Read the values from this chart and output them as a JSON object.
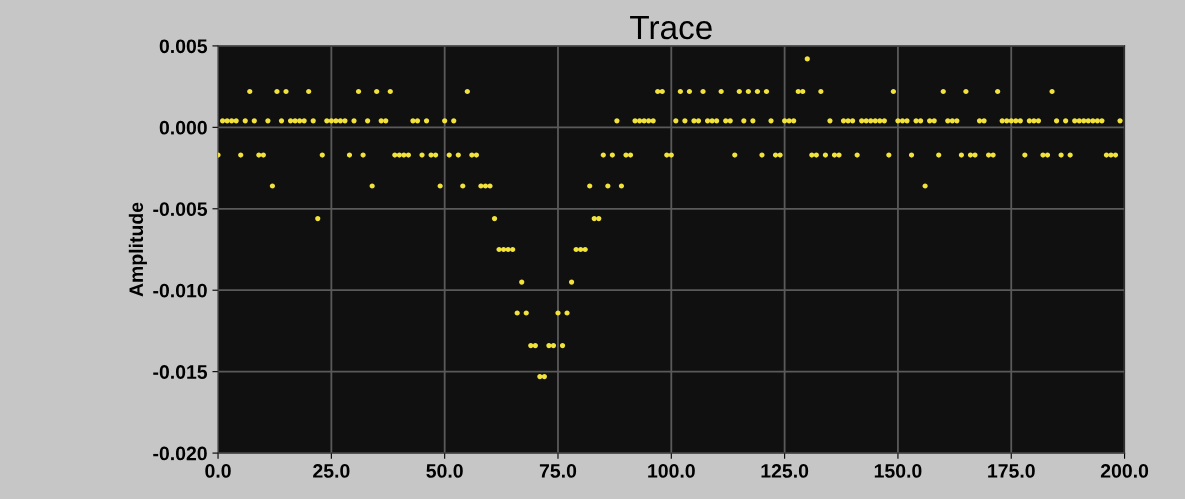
{
  "chart_data": {
    "type": "scatter",
    "title": "Trace",
    "ylabel": "Amplitude",
    "x": [
      0,
      1,
      2,
      3,
      4,
      5,
      6,
      7,
      8,
      9,
      10,
      11,
      12,
      13,
      14,
      15,
      16,
      17,
      18,
      19,
      20,
      21,
      22,
      23,
      24,
      25,
      26,
      27,
      28,
      29,
      30,
      31,
      32,
      33,
      34,
      35,
      36,
      37,
      38,
      39,
      40,
      41,
      42,
      43,
      44,
      45,
      46,
      47,
      48,
      49,
      50,
      51,
      52,
      53,
      54,
      55,
      56,
      57,
      58,
      59,
      60,
      61,
      62,
      63,
      64,
      65,
      66,
      67,
      68,
      69,
      70,
      71,
      72,
      73,
      74,
      75,
      76,
      77,
      78,
      79,
      80,
      81,
      82,
      83,
      84,
      85,
      86,
      87,
      88,
      89,
      90,
      91,
      92,
      93,
      94,
      95,
      96,
      97,
      98,
      99,
      100,
      101,
      102,
      103,
      104,
      105,
      106,
      107,
      108,
      109,
      110,
      111,
      112,
      113,
      114,
      115,
      116,
      117,
      118,
      119,
      120,
      121,
      122,
      123,
      124,
      125,
      126,
      127,
      128,
      129,
      130,
      131,
      132,
      133,
      134,
      135,
      136,
      137,
      138,
      139,
      140,
      141,
      142,
      143,
      144,
      145,
      146,
      147,
      148,
      149,
      150,
      151,
      152,
      153,
      154,
      155,
      156,
      157,
      158,
      159,
      160,
      161,
      162,
      163,
      164,
      165,
      166,
      167,
      168,
      169,
      170,
      171,
      172,
      173,
      174,
      175,
      176,
      177,
      178,
      179,
      180,
      181,
      182,
      183,
      184,
      185,
      186,
      187,
      188,
      189,
      190,
      191,
      192,
      193,
      194,
      195,
      196,
      197,
      198,
      199
    ],
    "series": [
      {
        "color": "#f2e23c",
        "values": [
          -0.0017,
          0.0004,
          0.0004,
          0.0004,
          0.0004,
          -0.0017,
          0.0004,
          0.0022,
          0.0004,
          -0.0017,
          -0.0017,
          0.0004,
          -0.0036,
          0.0022,
          0.0004,
          0.0022,
          0.0004,
          0.0004,
          0.0004,
          0.0004,
          0.0022,
          0.0004,
          -0.0056,
          -0.0017,
          0.0004,
          0.0004,
          0.0004,
          0.0004,
          0.0004,
          -0.0017,
          0.0004,
          0.0022,
          -0.0017,
          0.0004,
          -0.0036,
          0.0022,
          0.0004,
          0.0004,
          0.0022,
          -0.0017,
          -0.0017,
          -0.0017,
          -0.0017,
          0.0004,
          0.0004,
          -0.0017,
          0.0004,
          -0.0017,
          -0.0017,
          -0.0036,
          0.0004,
          -0.0017,
          0.0004,
          -0.0017,
          -0.0036,
          0.0022,
          -0.0017,
          -0.0017,
          -0.0036,
          -0.0036,
          -0.0036,
          -0.0056,
          -0.0075,
          -0.0075,
          -0.0075,
          -0.0075,
          -0.0114,
          -0.0095,
          -0.0114,
          -0.0134,
          -0.0134,
          -0.0153,
          -0.0153,
          -0.0134,
          -0.0134,
          -0.0114,
          -0.0134,
          -0.0114,
          -0.0095,
          -0.0075,
          -0.0075,
          -0.0075,
          -0.0036,
          -0.0056,
          -0.0056,
          -0.0017,
          -0.0036,
          -0.0017,
          0.0004,
          -0.0036,
          -0.0017,
          -0.0017,
          0.0004,
          0.0004,
          0.0004,
          0.0004,
          0.0004,
          0.0022,
          0.0022,
          -0.0017,
          -0.0017,
          0.0004,
          0.0022,
          0.0004,
          0.0022,
          0.0004,
          0.0004,
          0.0022,
          0.0004,
          0.0004,
          0.0004,
          0.0022,
          0.0004,
          0.0004,
          -0.0017,
          0.0022,
          0.0004,
          0.0022,
          0.0004,
          0.0022,
          -0.0017,
          0.0022,
          0.0004,
          -0.0017,
          -0.0017,
          0.0004,
          0.0004,
          0.0004,
          0.0022,
          0.0022,
          0.0042,
          -0.0017,
          -0.0017,
          0.0022,
          -0.0017,
          0.0004,
          -0.0017,
          -0.0017,
          0.0004,
          0.0004,
          0.0004,
          -0.0017,
          0.0004,
          0.0004,
          0.0004,
          0.0004,
          0.0004,
          0.0004,
          -0.0017,
          0.0022,
          0.0004,
          0.0004,
          0.0004,
          -0.0017,
          0.0004,
          0.0004,
          -0.0036,
          0.0004,
          0.0004,
          -0.0017,
          0.0022,
          0.0004,
          0.0004,
          0.0004,
          -0.0017,
          0.0022,
          -0.0017,
          -0.0017,
          0.0004,
          0.0004,
          -0.0017,
          -0.0017,
          0.0022,
          0.0004,
          0.0004,
          0.0004,
          0.0004,
          0.0004,
          -0.0017,
          0.0004,
          0.0004,
          0.0004,
          -0.0017,
          -0.0017,
          0.0022,
          0.0004,
          -0.0017,
          0.0004,
          -0.0017,
          0.0004,
          0.0004,
          0.0004,
          0.0004,
          0.0004,
          0.0004,
          0.0004,
          -0.0017,
          -0.0017,
          -0.0017,
          0.0004
        ]
      }
    ],
    "xlim": [
      0,
      200
    ],
    "ylim": [
      -0.02,
      0.005
    ],
    "xticks": [
      {
        "value": 0,
        "label": "0.0"
      },
      {
        "value": 25,
        "label": "25.0"
      },
      {
        "value": 50,
        "label": "50.0"
      },
      {
        "value": 75,
        "label": "75.0"
      },
      {
        "value": 100,
        "label": "100.0"
      },
      {
        "value": 125,
        "label": "125.0"
      },
      {
        "value": 150,
        "label": "150.0"
      },
      {
        "value": 175,
        "label": "175.0"
      },
      {
        "value": 200,
        "label": "200.0"
      }
    ],
    "yticks": [
      {
        "value": 0.005,
        "label": "0.005"
      },
      {
        "value": 0,
        "label": "0.000"
      },
      {
        "value": -0.005,
        "label": "-0.005"
      },
      {
        "value": -0.01,
        "label": "-0.010"
      },
      {
        "value": -0.015,
        "label": "-0.015"
      },
      {
        "value": -0.02,
        "label": "-0.020"
      }
    ],
    "grid": true,
    "marker": "circle",
    "legend": false
  }
}
